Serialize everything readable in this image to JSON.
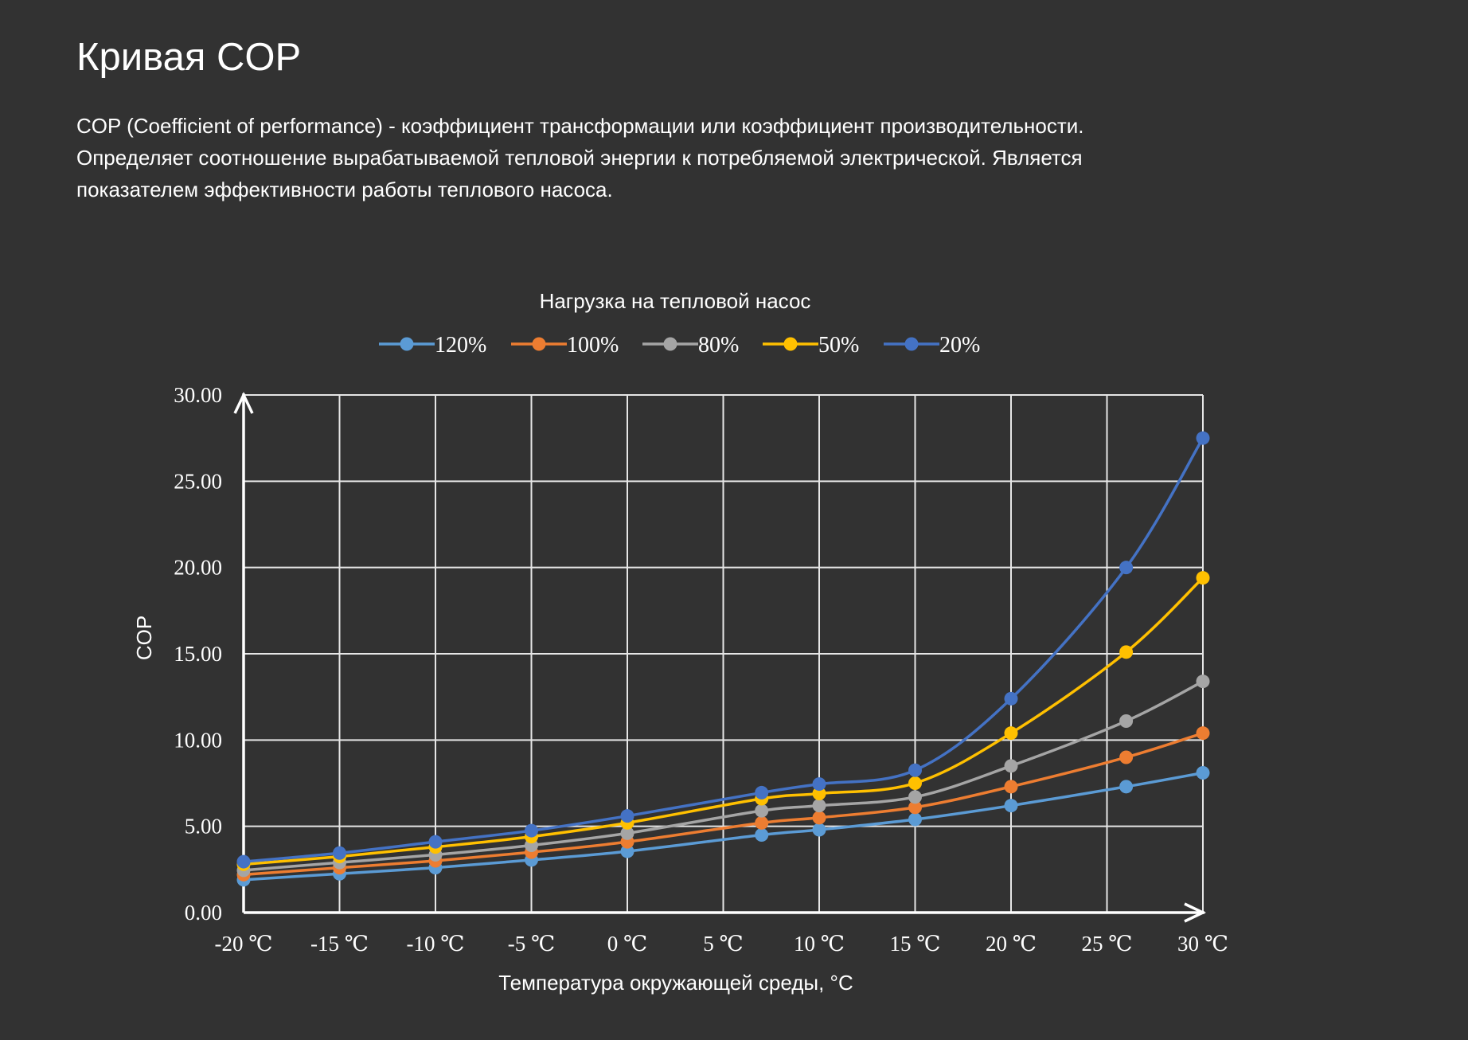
{
  "page": {
    "title": "Кривая COP",
    "description_lines": [
      "COP (Coefficient of performance) - коэффициент трансформации или коэффициент производительности.",
      "Определяет соотношение вырабатываемой тепловой энергии к потребляемой электрической. Является",
      "показателем эффективности работы теплового насоса."
    ]
  },
  "chart_data": {
    "type": "line",
    "title": "Нагрузка на тепловой насос",
    "xlabel": "Температура окружающей среды, °C",
    "ylabel": "COP",
    "x_tick_labels": [
      "-20 ℃",
      "-15 ℃",
      "-10 ℃",
      "-5 ℃",
      "0 ℃",
      "5 ℃",
      "10 ℃",
      "15 ℃",
      "20 ℃",
      "25 ℃",
      "30 ℃"
    ],
    "x_ticks": [
      -20,
      -15,
      -10,
      -5,
      0,
      5,
      10,
      15,
      20,
      25,
      30
    ],
    "y_tick_labels": [
      "0.00",
      "5.00",
      "10.00",
      "15.00",
      "20.00",
      "25.00",
      "30.00"
    ],
    "y_ticks": [
      0,
      5,
      10,
      15,
      20,
      25,
      30
    ],
    "xlim": [
      -20,
      30
    ],
    "ylim": [
      0,
      30
    ],
    "grid": true,
    "smooth": true,
    "legend_position": "top",
    "x": [
      -20,
      -15,
      -10,
      -5,
      0,
      7,
      10,
      15,
      20,
      26,
      30
    ],
    "series": [
      {
        "name": "120%",
        "color": "#5b9bd5",
        "values": [
          1.9,
          2.25,
          2.6,
          3.05,
          3.55,
          4.5,
          4.8,
          5.4,
          6.2,
          7.3,
          8.1
        ]
      },
      {
        "name": "100%",
        "color": "#ed7d31",
        "values": [
          2.2,
          2.6,
          3.0,
          3.5,
          4.1,
          5.2,
          5.5,
          6.1,
          7.3,
          9.0,
          10.4
        ]
      },
      {
        "name": "80%",
        "color": "#a5a5a5",
        "values": [
          2.45,
          2.9,
          3.35,
          3.9,
          4.6,
          5.9,
          6.2,
          6.7,
          8.5,
          11.1,
          13.4
        ]
      },
      {
        "name": "50%",
        "color": "#ffc000",
        "values": [
          2.8,
          3.25,
          3.8,
          4.4,
          5.2,
          6.6,
          6.9,
          7.5,
          10.4,
          15.1,
          19.4
        ]
      },
      {
        "name": "20%",
        "color": "#4472c4",
        "values": [
          2.95,
          3.45,
          4.1,
          4.75,
          5.6,
          6.95,
          7.45,
          8.25,
          12.4,
          20.0,
          27.5
        ]
      }
    ]
  }
}
